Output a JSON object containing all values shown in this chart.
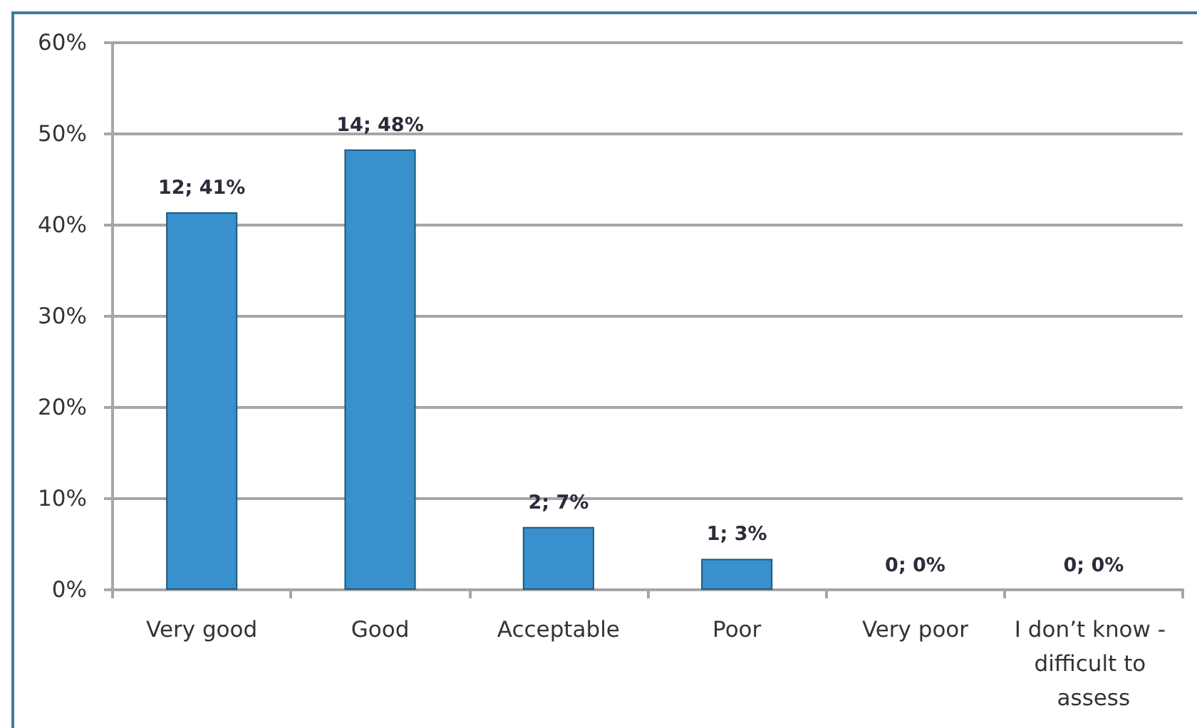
{
  "chart_data": {
    "type": "bar",
    "categories": [
      "Very good",
      "Good",
      "Acceptable",
      "Poor",
      "Very poor",
      "I don’t know - difficult to assess"
    ],
    "values": [
      41.4,
      48.3,
      6.9,
      3.4,
      0,
      0
    ],
    "color": "#3890cc",
    "value_labels": [
      "12; 41%",
      "14; 48%",
      "2; 7%",
      "1; 3%",
      "0; 0%",
      "0; 0%"
    ],
    "ylim": [
      0,
      60
    ],
    "yticks": [
      {
        "value": 0,
        "label": "0%"
      },
      {
        "value": 10,
        "label": "10%"
      },
      {
        "value": 20,
        "label": "20%"
      },
      {
        "value": 30,
        "label": "30%"
      },
      {
        "value": 40,
        "label": "40%"
      },
      {
        "value": 50,
        "label": "50%"
      },
      {
        "value": 60,
        "label": "60%"
      }
    ],
    "grid": "y"
  }
}
